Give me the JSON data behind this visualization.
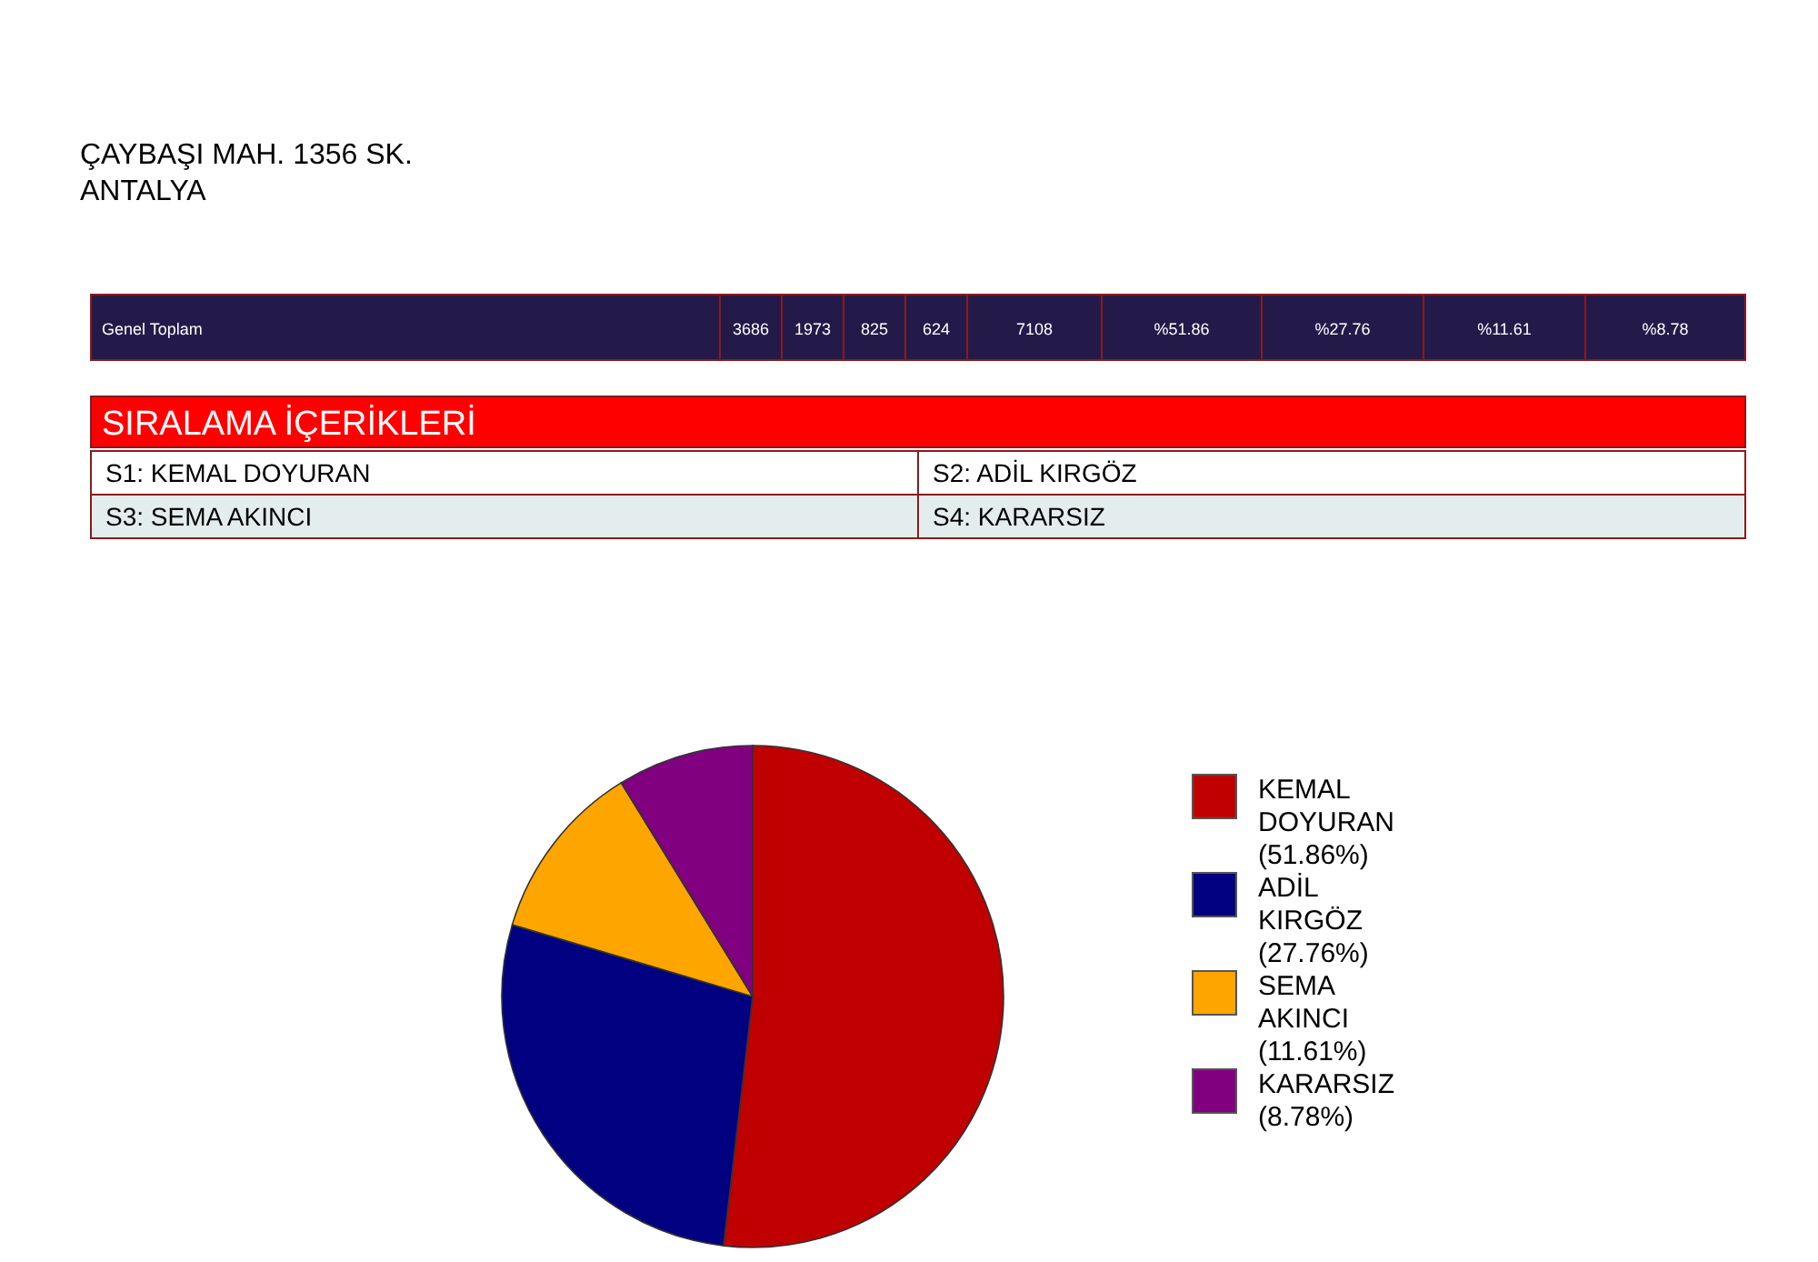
{
  "chart_data": {
    "type": "pie",
    "categories": [
      "KEMAL DOYURAN",
      "ADİL KIRGÖZ",
      "SEMA AKINCI",
      "KARARSIZ"
    ],
    "values": [
      51.86,
      27.76,
      11.61,
      8.78
    ],
    "value_labels": [
      "(51.86%)",
      "(27.76%)",
      "(11.61%)",
      "(8.78%)"
    ],
    "colors": [
      "#c00000",
      "#000080",
      "#ffa500",
      "#800080"
    ],
    "legend": "right",
    "annotations": [
      "ÇAYBAŞI MAH. 1356 SK.",
      "ANTALYA",
      "Genel Toplam",
      "3686",
      "1973",
      "825",
      "624",
      "7108",
      "%51.86",
      "%27.76",
      "%11.61",
      "%8.78",
      "SIRALAMA İÇERİKLERİ",
      "S1:  KEMAL DOYURAN",
      "S2:  ADİL KIRGÖZ",
      "S3: SEMA AKINCI",
      "S4: KARARSIZ"
    ]
  }
}
